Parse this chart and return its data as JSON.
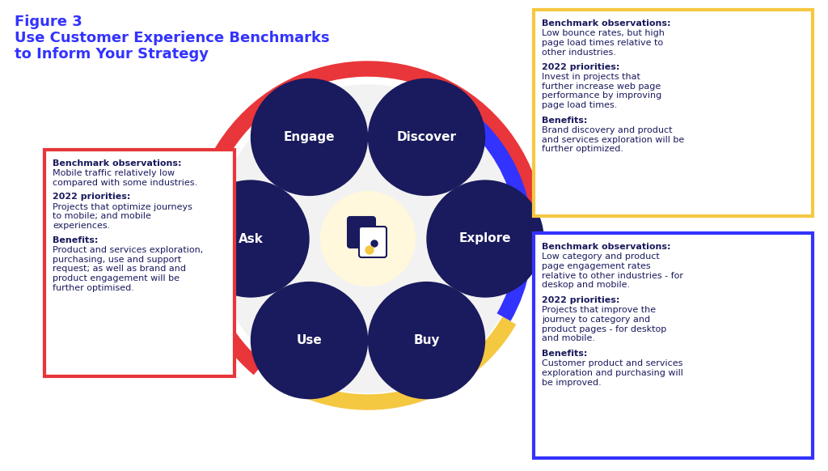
{
  "title_line1": "Figure 3",
  "title_line2": "Use Customer Experience Benchmarks",
  "title_line3": "to Inform Your Strategy",
  "title_color": "#3333FF",
  "bg_color": "#FFFFFF",
  "dark_navy": "#1a1a5e",
  "ring_colors": {
    "red": "#E8363A",
    "yellow": "#F5C842",
    "blue": "#3333FF"
  },
  "node_labels": [
    "Engage",
    "Discover",
    "Explore",
    "Buy",
    "Use",
    "Ask"
  ],
  "node_angles": [
    120,
    60,
    0,
    300,
    240,
    180
  ],
  "left_box": {
    "border_color": "#E8363A",
    "title": "Benchmark observations:",
    "body": "Mobile traffic relatively low\ncompared with some industries.\n\n2022 priorities:\nProjects that optimize journeys\nto mobile; and mobile\nexperiences.\n\nBenefits:\nProduct and services exploration,\npurchasing, use and support\nrequest; as well as brand and\nproduct engagement will be\nfurther optimised.",
    "bold_labels": [
      "Benchmark observations:",
      "2022 priorities:",
      "Benefits:"
    ]
  },
  "top_right_box": {
    "border_color": "#F5C842",
    "title": "Benchmark observations:",
    "body": "Benchmark observations:\nLow bounce rates, but high\npage load times relative to\nother industries.\n\n2022 priorities:\nInvest in projects that\nfurther increase web page\nperformance by improving\npage load times.\n\nBenefits:\nBrand discovery and product\nand services exploration will be\nfurther optimized.",
    "bold_labels": [
      "Benchmark observations:",
      "2022 priorities:",
      "Benefits:"
    ]
  },
  "bottom_right_box": {
    "border_color": "#3333FF",
    "title": "Benchmark observations:",
    "body": "Benchmark observations:\nLow category and product\npage engagement rates\nrelative to other industries - for\ndeskop and mobile.\n\n2022 priorities:\nProjects that improve the\njourney to category and\nproduct pages - for desktop\nand mobile.\n\nBenefits:\nCustomer product and services\nexploration and purchasing will\nbe improved.",
    "bold_labels": [
      "Benchmark observations:",
      "2022 priorities:",
      "Benefits:"
    ]
  }
}
